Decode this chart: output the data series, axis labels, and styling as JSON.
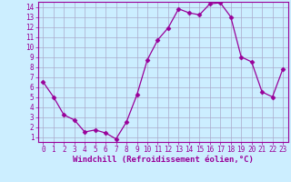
{
  "x": [
    0,
    1,
    2,
    3,
    4,
    5,
    6,
    7,
    8,
    9,
    10,
    11,
    12,
    13,
    14,
    15,
    16,
    17,
    18,
    19,
    20,
    21,
    22,
    23
  ],
  "y": [
    6.5,
    5.0,
    3.2,
    2.7,
    1.5,
    1.7,
    1.4,
    0.8,
    2.5,
    5.2,
    8.7,
    10.7,
    11.9,
    13.8,
    13.4,
    13.2,
    14.3,
    14.4,
    13.0,
    9.0,
    8.5,
    5.5,
    5.0,
    7.8
  ],
  "line_color": "#990099",
  "marker": "D",
  "marker_size": 2.5,
  "bg_color": "#cceeff",
  "grid_color": "#aaaacc",
  "xlabel": "Windchill (Refroidissement éolien,°C)",
  "xlabel_color": "#990099",
  "tick_color": "#990099",
  "xlim": [
    -0.5,
    23.5
  ],
  "ylim": [
    0.5,
    14.5
  ],
  "yticks": [
    1,
    2,
    3,
    4,
    5,
    6,
    7,
    8,
    9,
    10,
    11,
    12,
    13,
    14
  ],
  "xticks": [
    0,
    1,
    2,
    3,
    4,
    5,
    6,
    7,
    8,
    9,
    10,
    11,
    12,
    13,
    14,
    15,
    16,
    17,
    18,
    19,
    20,
    21,
    22,
    23
  ],
  "spine_color": "#990099",
  "tick_fontsize": 5.5,
  "xlabel_fontsize": 6.5
}
